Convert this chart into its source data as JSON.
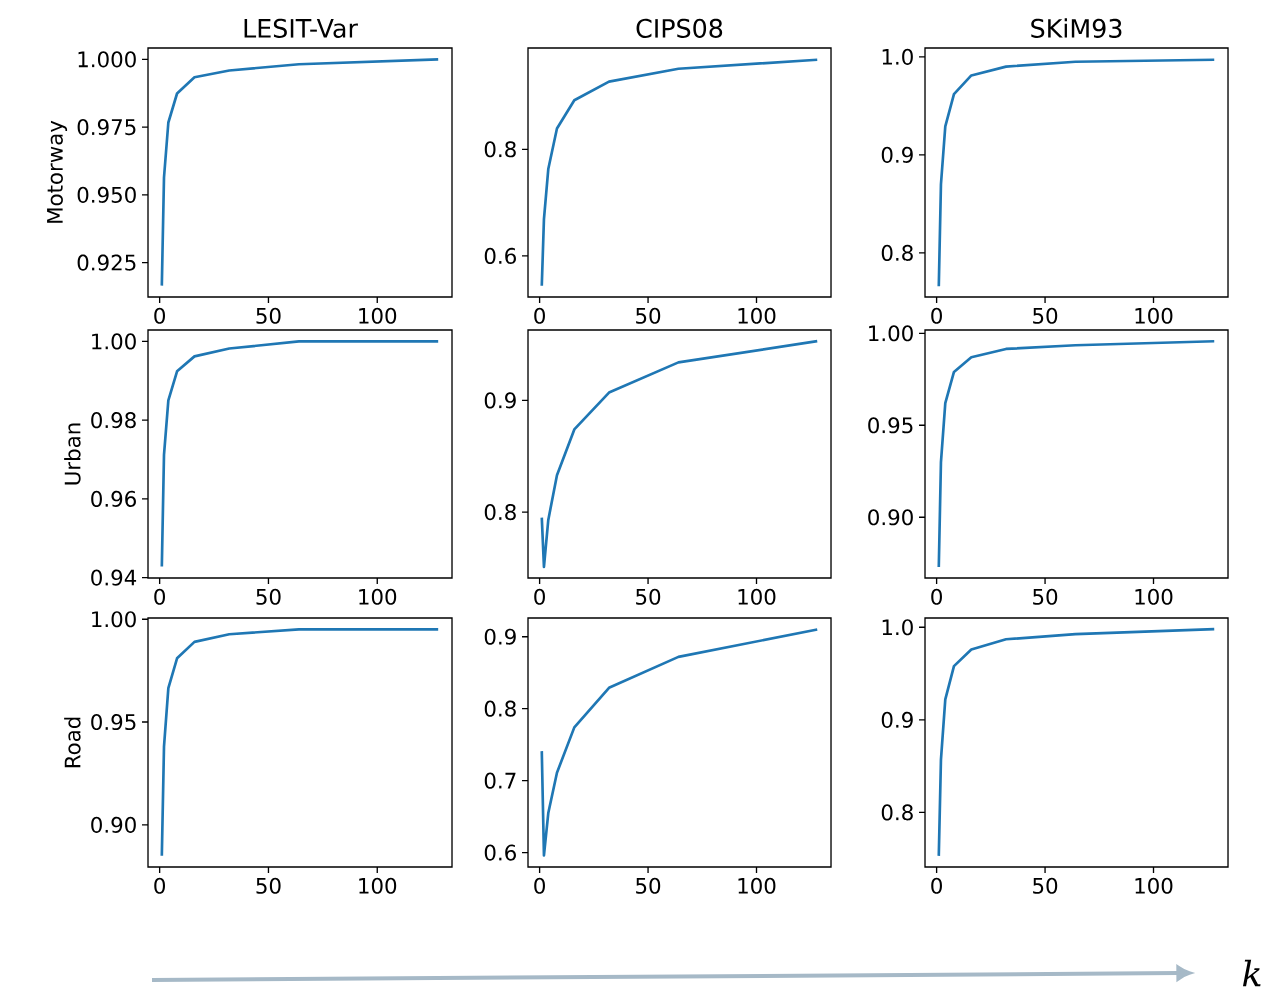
{
  "chart_data": [
    {
      "type": "line",
      "title": "LESIT-Var",
      "ylabel": "Motorway",
      "x": [
        1,
        2,
        4,
        8,
        16,
        32,
        64,
        128
      ],
      "values": [
        0.9165,
        0.9564,
        0.9767,
        0.9874,
        0.9934,
        0.9959,
        0.9982,
        1.0
      ],
      "color": "#1f77b4",
      "xlim": [
        -5.35,
        134.35
      ],
      "ylim": [
        0.9123,
        1.0042
      ],
      "xticks": [
        0,
        50,
        100
      ],
      "yticks": [
        {
          "value": 0.925,
          "label": "0.925"
        },
        {
          "value": 0.95,
          "label": "0.950"
        },
        {
          "value": 0.975,
          "label": "0.975"
        },
        {
          "value": 1.0,
          "label": "1.000"
        }
      ]
    },
    {
      "type": "line",
      "title": "CIPS08",
      "x": [
        1,
        2,
        4,
        8,
        16,
        32,
        64,
        128
      ],
      "values": [
        0.544,
        0.669,
        0.763,
        0.839,
        0.892,
        0.927,
        0.951,
        0.968
      ],
      "color": "#1f77b4",
      "xlim": [
        -5.35,
        134.35
      ],
      "ylim": [
        0.523,
        0.99
      ],
      "xticks": [
        0,
        50,
        100
      ],
      "yticks": [
        {
          "value": 0.6,
          "label": "0.6"
        },
        {
          "value": 0.8,
          "label": "0.8"
        }
      ]
    },
    {
      "type": "line",
      "title": "SKiM93",
      "x": [
        1,
        2,
        4,
        8,
        16,
        32,
        64,
        128
      ],
      "values": [
        0.766,
        0.87,
        0.929,
        0.962,
        0.981,
        0.99,
        0.995,
        0.997
      ],
      "color": "#1f77b4",
      "xlim": [
        -5.35,
        134.35
      ],
      "ylim": [
        0.755,
        1.009
      ],
      "xticks": [
        0,
        50,
        100
      ],
      "yticks": [
        {
          "value": 0.8,
          "label": "0.8"
        },
        {
          "value": 0.9,
          "label": "0.9"
        },
        {
          "value": 1.0,
          "label": "1.0"
        }
      ]
    },
    {
      "type": "line",
      "ylabel": "Urban",
      "x": [
        1,
        2,
        4,
        8,
        16,
        32,
        64,
        128
      ],
      "values": [
        0.9428,
        0.9712,
        0.985,
        0.9924,
        0.9962,
        0.9982,
        1.0,
        1.0
      ],
      "color": "#1f77b4",
      "xlim": [
        -5.35,
        134.35
      ],
      "ylim": [
        0.9399,
        1.0029
      ],
      "xticks": [
        0,
        50,
        100
      ],
      "yticks": [
        {
          "value": 0.94,
          "label": "0.94"
        },
        {
          "value": 0.96,
          "label": "0.96"
        },
        {
          "value": 0.98,
          "label": "0.98"
        },
        {
          "value": 1.0,
          "label": "1.00"
        }
      ]
    },
    {
      "type": "line",
      "x": [
        1,
        2,
        4,
        8,
        16,
        32,
        64,
        128
      ],
      "values": [
        0.795,
        0.751,
        0.793,
        0.833,
        0.874,
        0.907,
        0.934,
        0.953
      ],
      "color": "#1f77b4",
      "xlim": [
        -5.35,
        134.35
      ],
      "ylim": [
        0.741,
        0.963
      ],
      "xticks": [
        0,
        50,
        100
      ],
      "yticks": [
        {
          "value": 0.8,
          "label": "0.8"
        },
        {
          "value": 0.9,
          "label": "0.9"
        }
      ]
    },
    {
      "type": "line",
      "x": [
        1,
        2,
        4,
        8,
        16,
        32,
        64,
        128
      ],
      "values": [
        0.873,
        0.93,
        0.962,
        0.979,
        0.987,
        0.9915,
        0.9935,
        0.9957
      ],
      "color": "#1f77b4",
      "xlim": [
        -5.35,
        134.35
      ],
      "ylim": [
        0.867,
        1.0018
      ],
      "xticks": [
        0,
        50,
        100
      ],
      "yticks": [
        {
          "value": 0.9,
          "label": "0.90"
        },
        {
          "value": 0.95,
          "label": "0.95"
        },
        {
          "value": 1.0,
          "label": "1.00"
        }
      ]
    },
    {
      "type": "line",
      "ylabel": "Road",
      "x": [
        1,
        2,
        4,
        8,
        16,
        32,
        64,
        128
      ],
      "values": [
        0.885,
        0.938,
        0.9665,
        0.981,
        0.989,
        0.9927,
        0.9951,
        0.9951
      ],
      "color": "#1f77b4",
      "xlim": [
        -5.35,
        134.35
      ],
      "ylim": [
        0.8795,
        1.0006
      ],
      "xticks": [
        0,
        50,
        100
      ],
      "yticks": [
        {
          "value": 0.9,
          "label": "0.90"
        },
        {
          "value": 0.95,
          "label": "0.95"
        },
        {
          "value": 1.0,
          "label": "1.00"
        }
      ]
    },
    {
      "type": "line",
      "x": [
        1,
        2,
        4,
        8,
        16,
        32,
        64,
        128
      ],
      "values": [
        0.741,
        0.596,
        0.655,
        0.711,
        0.774,
        0.829,
        0.872,
        0.91
      ],
      "color": "#1f77b4",
      "xlim": [
        -5.35,
        134.35
      ],
      "ylim": [
        0.58,
        0.926
      ],
      "xticks": [
        0,
        50,
        100
      ],
      "yticks": [
        {
          "value": 0.6,
          "label": "0.6"
        },
        {
          "value": 0.7,
          "label": "0.7"
        },
        {
          "value": 0.8,
          "label": "0.8"
        },
        {
          "value": 0.9,
          "label": "0.9"
        }
      ]
    },
    {
      "type": "line",
      "x": [
        1,
        2,
        4,
        8,
        16,
        32,
        64,
        128
      ],
      "values": [
        0.753,
        0.857,
        0.922,
        0.958,
        0.976,
        0.987,
        0.9925,
        0.998
      ],
      "color": "#1f77b4",
      "xlim": [
        -5.35,
        134.35
      ],
      "ylim": [
        0.741,
        1.01
      ],
      "xticks": [
        0,
        50,
        100
      ],
      "yticks": [
        {
          "value": 0.8,
          "label": "0.8"
        },
        {
          "value": 0.9,
          "label": "0.9"
        },
        {
          "value": 1.0,
          "label": "1.0"
        }
      ],
      "annotations": [
        "k"
      ]
    }
  ]
}
